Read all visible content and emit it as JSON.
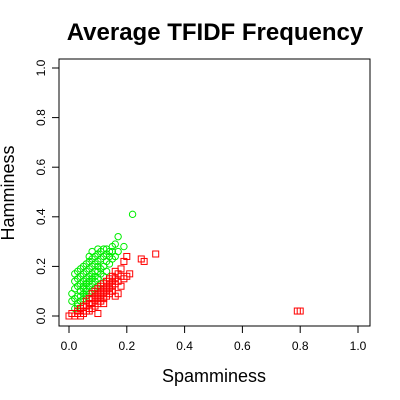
{
  "chart_data": {
    "type": "scatter",
    "title": "Average TFIDF Frequency",
    "xlabel": "Spamminess",
    "ylabel": "Hamminess",
    "xlim": [
      0.0,
      1.0
    ],
    "ylim": [
      0.0,
      1.0
    ],
    "xticks": [
      "0.0",
      "0.2",
      "0.4",
      "0.6",
      "0.8",
      "1.0"
    ],
    "yticks": [
      "0.0",
      "0.2",
      "0.4",
      "0.6",
      "0.8",
      "1.0"
    ],
    "grid": false,
    "legend": "none",
    "series": [
      {
        "marker": "circle",
        "color": "#00ee00",
        "points": [
          [
            0.01,
            0.06
          ],
          [
            0.01,
            0.09
          ],
          [
            0.02,
            0.03
          ],
          [
            0.02,
            0.07
          ],
          [
            0.02,
            0.11
          ],
          [
            0.02,
            0.14
          ],
          [
            0.02,
            0.17
          ],
          [
            0.03,
            0.04
          ],
          [
            0.03,
            0.08
          ],
          [
            0.03,
            0.12
          ],
          [
            0.03,
            0.15
          ],
          [
            0.03,
            0.18
          ],
          [
            0.03,
            0.05
          ],
          [
            0.04,
            0.06
          ],
          [
            0.04,
            0.1
          ],
          [
            0.04,
            0.13
          ],
          [
            0.04,
            0.16
          ],
          [
            0.04,
            0.19
          ],
          [
            0.04,
            0.08
          ],
          [
            0.05,
            0.07
          ],
          [
            0.05,
            0.09
          ],
          [
            0.05,
            0.11
          ],
          [
            0.05,
            0.14
          ],
          [
            0.05,
            0.17
          ],
          [
            0.05,
            0.2
          ],
          [
            0.05,
            0.12
          ],
          [
            0.06,
            0.08
          ],
          [
            0.06,
            0.1
          ],
          [
            0.06,
            0.13
          ],
          [
            0.06,
            0.15
          ],
          [
            0.06,
            0.18
          ],
          [
            0.06,
            0.21
          ],
          [
            0.06,
            0.11
          ],
          [
            0.07,
            0.09
          ],
          [
            0.07,
            0.12
          ],
          [
            0.07,
            0.14
          ],
          [
            0.07,
            0.16
          ],
          [
            0.07,
            0.19
          ],
          [
            0.07,
            0.22
          ],
          [
            0.07,
            0.24
          ],
          [
            0.08,
            0.1
          ],
          [
            0.08,
            0.13
          ],
          [
            0.08,
            0.15
          ],
          [
            0.08,
            0.17
          ],
          [
            0.08,
            0.2
          ],
          [
            0.08,
            0.23
          ],
          [
            0.08,
            0.26
          ],
          [
            0.09,
            0.11
          ],
          [
            0.09,
            0.14
          ],
          [
            0.09,
            0.16
          ],
          [
            0.09,
            0.18
          ],
          [
            0.09,
            0.21
          ],
          [
            0.09,
            0.24
          ],
          [
            0.1,
            0.12
          ],
          [
            0.1,
            0.15
          ],
          [
            0.1,
            0.18
          ],
          [
            0.1,
            0.2
          ],
          [
            0.1,
            0.22
          ],
          [
            0.1,
            0.25
          ],
          [
            0.1,
            0.27
          ],
          [
            0.11,
            0.13
          ],
          [
            0.11,
            0.17
          ],
          [
            0.11,
            0.19
          ],
          [
            0.11,
            0.23
          ],
          [
            0.11,
            0.26
          ],
          [
            0.12,
            0.16
          ],
          [
            0.12,
            0.2
          ],
          [
            0.12,
            0.24
          ],
          [
            0.12,
            0.27
          ],
          [
            0.13,
            0.18
          ],
          [
            0.13,
            0.22
          ],
          [
            0.13,
            0.25
          ],
          [
            0.13,
            0.27
          ],
          [
            0.14,
            0.21
          ],
          [
            0.14,
            0.24
          ],
          [
            0.14,
            0.26
          ],
          [
            0.15,
            0.23
          ],
          [
            0.15,
            0.26
          ],
          [
            0.15,
            0.28
          ],
          [
            0.16,
            0.24
          ],
          [
            0.16,
            0.29
          ],
          [
            0.17,
            0.26
          ],
          [
            0.17,
            0.32
          ],
          [
            0.19,
            0.28
          ],
          [
            0.22,
            0.41
          ]
        ]
      },
      {
        "marker": "square",
        "color": "#ff0000",
        "points": [
          [
            0.0,
            0.0
          ],
          [
            0.01,
            0.01
          ],
          [
            0.02,
            0.0
          ],
          [
            0.03,
            0.01
          ],
          [
            0.03,
            0.02
          ],
          [
            0.04,
            0.0
          ],
          [
            0.04,
            0.03
          ],
          [
            0.05,
            0.01
          ],
          [
            0.05,
            0.02
          ],
          [
            0.05,
            0.04
          ],
          [
            0.06,
            0.02
          ],
          [
            0.06,
            0.04
          ],
          [
            0.06,
            0.06
          ],
          [
            0.07,
            0.02
          ],
          [
            0.07,
            0.03
          ],
          [
            0.07,
            0.05
          ],
          [
            0.07,
            0.07
          ],
          [
            0.08,
            0.03
          ],
          [
            0.08,
            0.05
          ],
          [
            0.08,
            0.07
          ],
          [
            0.08,
            0.09
          ],
          [
            0.09,
            0.04
          ],
          [
            0.09,
            0.06
          ],
          [
            0.09,
            0.08
          ],
          [
            0.09,
            0.1
          ],
          [
            0.1,
            0.01
          ],
          [
            0.1,
            0.05
          ],
          [
            0.1,
            0.07
          ],
          [
            0.1,
            0.09
          ],
          [
            0.1,
            0.11
          ],
          [
            0.11,
            0.06
          ],
          [
            0.11,
            0.08
          ],
          [
            0.11,
            0.1
          ],
          [
            0.11,
            0.12
          ],
          [
            0.12,
            0.05
          ],
          [
            0.12,
            0.07
          ],
          [
            0.12,
            0.09
          ],
          [
            0.12,
            0.11
          ],
          [
            0.12,
            0.13
          ],
          [
            0.13,
            0.08
          ],
          [
            0.13,
            0.1
          ],
          [
            0.13,
            0.12
          ],
          [
            0.13,
            0.14
          ],
          [
            0.14,
            0.09
          ],
          [
            0.14,
            0.11
          ],
          [
            0.14,
            0.13
          ],
          [
            0.14,
            0.15
          ],
          [
            0.15,
            0.1
          ],
          [
            0.15,
            0.12
          ],
          [
            0.15,
            0.14
          ],
          [
            0.15,
            0.16
          ],
          [
            0.16,
            0.08
          ],
          [
            0.16,
            0.13
          ],
          [
            0.16,
            0.15
          ],
          [
            0.16,
            0.18
          ],
          [
            0.17,
            0.09
          ],
          [
            0.17,
            0.14
          ],
          [
            0.17,
            0.17
          ],
          [
            0.18,
            0.12
          ],
          [
            0.18,
            0.16
          ],
          [
            0.18,
            0.19
          ],
          [
            0.19,
            0.15
          ],
          [
            0.19,
            0.22
          ],
          [
            0.2,
            0.16
          ],
          [
            0.2,
            0.24
          ],
          [
            0.21,
            0.17
          ],
          [
            0.25,
            0.23
          ],
          [
            0.26,
            0.22
          ],
          [
            0.3,
            0.25
          ],
          [
            0.79,
            0.02
          ],
          [
            0.8,
            0.02
          ]
        ]
      }
    ]
  }
}
